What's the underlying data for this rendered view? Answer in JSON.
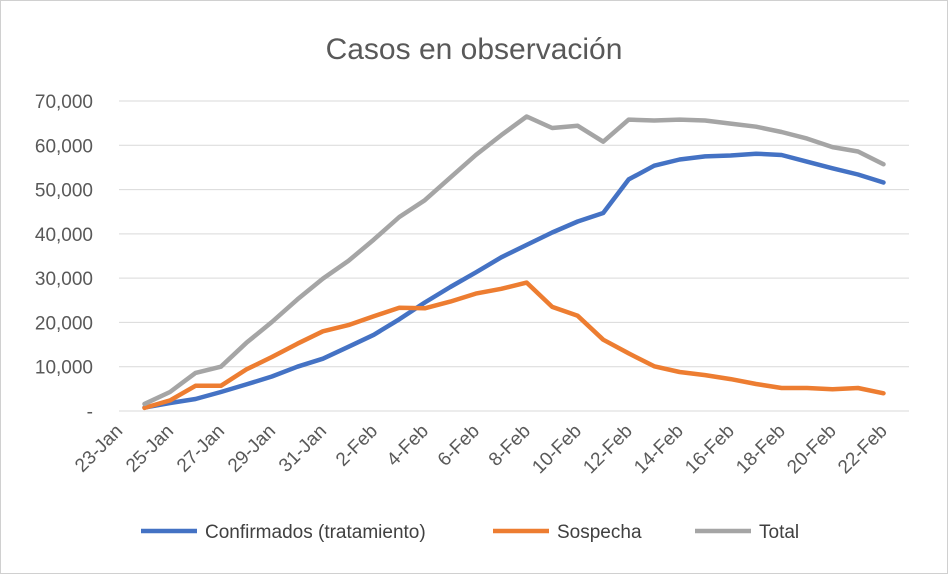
{
  "chart_data": {
    "type": "line",
    "title": "Casos en observación",
    "xlabel": "",
    "ylabel": "",
    "ylim": [
      0,
      70000
    ],
    "yticks": [
      0,
      10000,
      20000,
      30000,
      40000,
      50000,
      60000,
      70000
    ],
    "ytick_labels": [
      "-",
      "10,000",
      "20,000",
      "30,000",
      "40,000",
      "50,000",
      "60,000",
      "70,000"
    ],
    "xlim": [
      "2020-01-23",
      "2020-02-23"
    ],
    "x_tick_labels": [
      "23-Jan",
      "25-Jan",
      "27-Jan",
      "29-Jan",
      "31-Jan",
      "2-Feb",
      "4-Feb",
      "6-Feb",
      "8-Feb",
      "10-Feb",
      "12-Feb",
      "14-Feb",
      "16-Feb",
      "18-Feb",
      "20-Feb",
      "22-Feb"
    ],
    "x_tick_dates": [
      "2020-01-23",
      "2020-01-25",
      "2020-01-27",
      "2020-01-29",
      "2020-01-31",
      "2020-02-02",
      "2020-02-04",
      "2020-02-06",
      "2020-02-08",
      "2020-02-10",
      "2020-02-12",
      "2020-02-14",
      "2020-02-16",
      "2020-02-18",
      "2020-02-20",
      "2020-02-22"
    ],
    "grid": true,
    "legend_position": "bottom",
    "x": [
      "2020-01-24",
      "2020-01-25",
      "2020-01-26",
      "2020-01-27",
      "2020-01-28",
      "2020-01-29",
      "2020-01-30",
      "2020-01-31",
      "2020-02-01",
      "2020-02-02",
      "2020-02-03",
      "2020-02-04",
      "2020-02-05",
      "2020-02-06",
      "2020-02-07",
      "2020-02-08",
      "2020-02-09",
      "2020-02-10",
      "2020-02-11",
      "2020-02-12",
      "2020-02-13",
      "2020-02-14",
      "2020-02-15",
      "2020-02-16",
      "2020-02-17",
      "2020-02-18",
      "2020-02-19",
      "2020-02-20",
      "2020-02-21",
      "2020-02-22"
    ],
    "series": [
      {
        "name": "Confirmados (tratamiento)",
        "color": "#4472C4",
        "values": [
          800,
          1800,
          2700,
          4300,
          6000,
          7800,
          10000,
          11800,
          14500,
          17200,
          20700,
          24500,
          28000,
          31300,
          34700,
          37500,
          40300,
          42800,
          44700,
          52300,
          55400,
          56800,
          57500,
          57700,
          58100,
          57800,
          56300,
          54800,
          53400,
          51600
        ]
      },
      {
        "name": "Sospecha",
        "color": "#ED7D31",
        "values": [
          700,
          2400,
          5700,
          5700,
          9400,
          12200,
          15200,
          18000,
          19400,
          21400,
          23300,
          23200,
          24700,
          26500,
          27600,
          29000,
          23500,
          21500,
          16100,
          13000,
          10100,
          8800,
          8100,
          7200,
          6100,
          5200,
          5200,
          4900,
          5200,
          4000
        ]
      },
      {
        "name": "Total",
        "color": "#A5A5A5",
        "values": [
          1600,
          4300,
          8600,
          10000,
          15400,
          20100,
          25200,
          29900,
          33900,
          38700,
          43800,
          47600,
          52700,
          57800,
          62300,
          66500,
          63900,
          64400,
          60800,
          65800,
          65600,
          65800,
          65600,
          64900,
          64200,
          63000,
          61500,
          59600,
          58600,
          55700
        ]
      }
    ]
  }
}
